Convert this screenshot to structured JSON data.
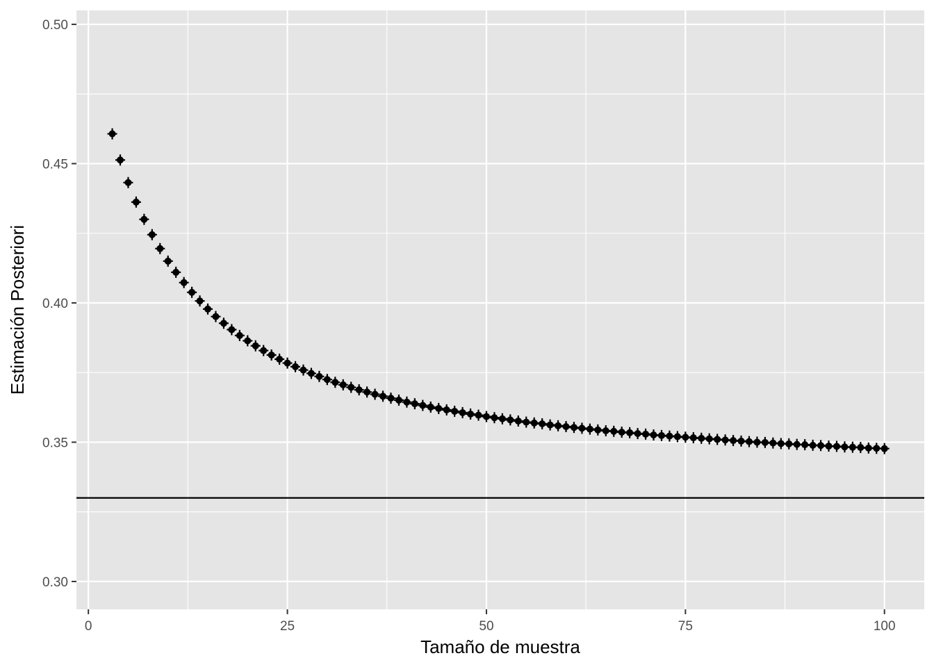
{
  "chart_data": {
    "type": "scatter",
    "title": "",
    "xlabel": "Tamaño de muestra",
    "ylabel": "Estimación Posteriori",
    "xlim": [
      -1.5,
      105
    ],
    "ylim": [
      0.29,
      0.505
    ],
    "x_ticks": [
      0,
      25,
      50,
      75,
      100
    ],
    "x_tick_labels": [
      "0",
      "25",
      "50",
      "75",
      "100"
    ],
    "y_ticks": [
      0.3,
      0.35,
      0.4,
      0.45,
      0.5
    ],
    "y_tick_labels": [
      "0.30",
      "0.35",
      "0.40",
      "0.45",
      "0.50"
    ],
    "grid": true,
    "legend": "none",
    "reference_line": {
      "orientation": "horizontal",
      "y": 0.33,
      "color": "#000000"
    },
    "colors": {
      "panel": "#e5e5e5",
      "grid": "#ffffff",
      "points": "#000000",
      "tick_text": "#4d4d4d"
    },
    "series": [
      {
        "x": [
          3,
          4,
          5,
          6,
          7,
          8,
          9,
          10,
          11,
          12,
          13,
          14,
          15,
          16,
          17,
          18,
          19,
          20,
          21,
          22,
          23,
          24,
          25,
          26,
          27,
          28,
          29,
          30,
          31,
          32,
          33,
          34,
          35,
          36,
          37,
          38,
          39,
          40,
          41,
          42,
          43,
          44,
          45,
          46,
          47,
          48,
          49,
          50,
          51,
          52,
          53,
          54,
          55,
          56,
          57,
          58,
          59,
          60,
          61,
          62,
          63,
          64,
          65,
          66,
          67,
          68,
          69,
          70,
          71,
          72,
          73,
          74,
          75,
          76,
          77,
          78,
          79,
          80,
          81,
          82,
          83,
          84,
          85,
          86,
          87,
          88,
          89,
          90,
          91,
          92,
          93,
          94,
          95,
          96,
          97,
          98,
          99,
          100
        ],
        "y": [
          0.4607,
          0.4513,
          0.4432,
          0.4362,
          0.43,
          0.4245,
          0.4195,
          0.415,
          0.411,
          0.4073,
          0.4038,
          0.4007,
          0.3978,
          0.3951,
          0.3927,
          0.3904,
          0.3883,
          0.3864,
          0.3846,
          0.3829,
          0.3813,
          0.3798,
          0.3784,
          0.3771,
          0.3759,
          0.3747,
          0.3736,
          0.3725,
          0.3715,
          0.3706,
          0.3697,
          0.3688,
          0.368,
          0.3672,
          0.3665,
          0.3658,
          0.3651,
          0.3644,
          0.3638,
          0.3632,
          0.3626,
          0.3621,
          0.3616,
          0.3611,
          0.3606,
          0.3601,
          0.3597,
          0.3592,
          0.3588,
          0.3584,
          0.358,
          0.3576,
          0.3572,
          0.3569,
          0.3566,
          0.3562,
          0.3559,
          0.3556,
          0.3553,
          0.355,
          0.3547,
          0.3544,
          0.3541,
          0.3539,
          0.3536,
          0.3534,
          0.3531,
          0.3529,
          0.3526,
          0.3524,
          0.3522,
          0.352,
          0.3518,
          0.3516,
          0.3514,
          0.3512,
          0.351,
          0.3508,
          0.3506,
          0.3504,
          0.3502,
          0.35,
          0.3499,
          0.3497,
          0.3495,
          0.3494,
          0.3492,
          0.3491,
          0.3489,
          0.3488,
          0.3486,
          0.3485,
          0.3483,
          0.3482,
          0.3481,
          0.3479,
          0.3478,
          0.3477
        ]
      }
    ]
  }
}
